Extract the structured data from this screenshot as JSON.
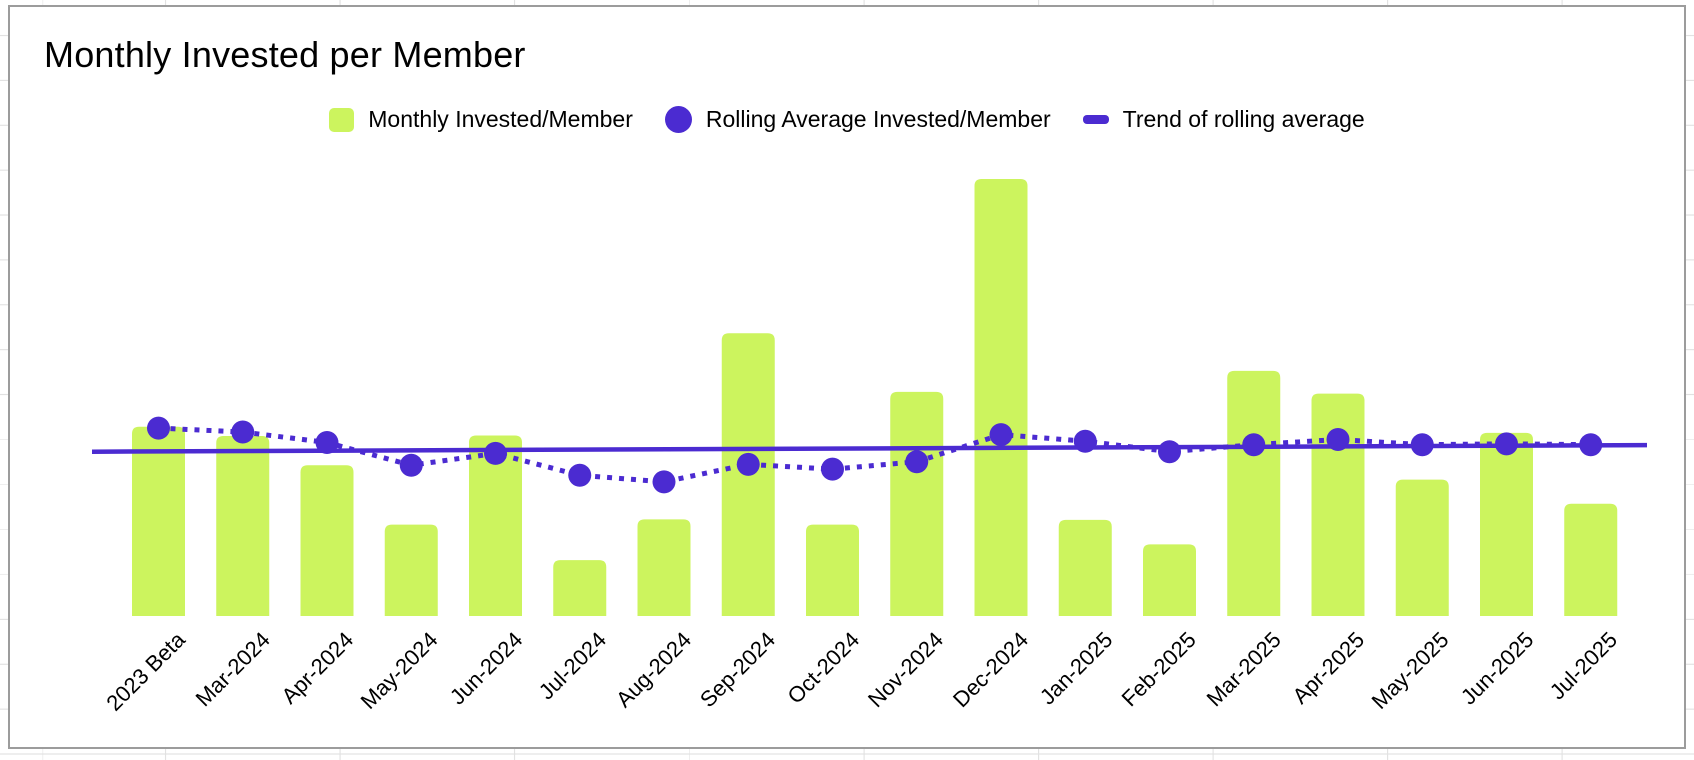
{
  "chart": {
    "title": "Monthly Invested per Member",
    "legend_items": [
      {
        "label": "Monthly Invested/Member",
        "marker": "square",
        "color": "#ccf45e"
      },
      {
        "label": "Rolling Average Invested/Member",
        "marker": "circle",
        "color": "#4b2bd1"
      },
      {
        "label": "Trend of rolling average",
        "marker": "dash",
        "color": "#4b2bd1"
      }
    ]
  },
  "chart_data": {
    "type": "bar",
    "subtype": "combo: bars + dotted line with point markers + straight trendline",
    "title": "Monthly Invested per Member",
    "xlabel": "",
    "ylabel": "",
    "y_axis_visible": false,
    "value_scale": "relative units, tallest bar (Dec-2024) = 100; no y-axis labels shown in chart",
    "ylim": [
      0,
      105
    ],
    "grid": false,
    "legend_position": "top-center",
    "categories": [
      "2023 Beta",
      "Mar-2024",
      "Apr-2024",
      "May-2024",
      "Jun-2024",
      "Jul-2024",
      "Aug-2024",
      "Sep-2024",
      "Oct-2024",
      "Nov-2024",
      "Dec-2024",
      "Jan-2025",
      "Feb-2025",
      "Mar-2025",
      "Apr-2025",
      "May-2025",
      "Jun-2025",
      "Jul-2025"
    ],
    "series": [
      {
        "name": "Monthly Invested/Member",
        "type": "bar",
        "color": "#ccf45e",
        "values": [
          43.3,
          41.2,
          34.5,
          20.9,
          41.3,
          12.8,
          22.1,
          64.7,
          20.9,
          51.3,
          100.0,
          22.0,
          16.4,
          56.1,
          50.9,
          31.2,
          41.9,
          25.7
        ]
      },
      {
        "name": "Rolling Average Invested/Member",
        "type": "line",
        "style": "dotted with round point markers",
        "color": "#4b2bd1",
        "values": [
          43.0,
          42.1,
          39.7,
          34.5,
          37.2,
          32.2,
          30.7,
          34.7,
          33.6,
          35.3,
          41.5,
          40.0,
          37.6,
          39.2,
          40.4,
          39.2,
          39.4,
          39.2
        ]
      },
      {
        "name": "Trend of rolling average",
        "type": "trendline",
        "color": "#4b2bd1",
        "endpoint_values": [
          37.6,
          39.1
        ]
      }
    ]
  }
}
